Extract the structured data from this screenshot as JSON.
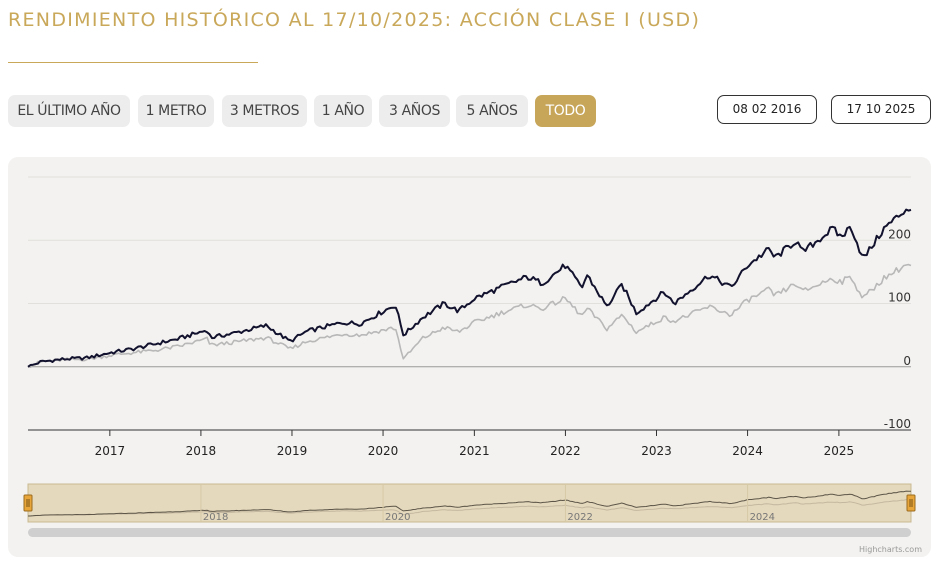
{
  "header": {
    "title": "RENDIMIENTO HISTÓRICO AL 17/10/2025: ACCIÓN CLASE I (USD)"
  },
  "range_selector": {
    "buttons": [
      {
        "label": "EL ÚLTIMO AÑO",
        "active": false
      },
      {
        "label": "1 METRO",
        "active": false
      },
      {
        "label": "3 METROS",
        "active": false
      },
      {
        "label": "1 AÑO",
        "active": false
      },
      {
        "label": "3 AÑOS",
        "active": false
      },
      {
        "label": "5 AÑOS",
        "active": false
      },
      {
        "label": "TODO",
        "active": true
      }
    ],
    "from_date": "08 02 2016",
    "to_date": "17 10 2025"
  },
  "chart_data": {
    "type": "line",
    "x_type": "date",
    "xlim": [
      "2016-02-08",
      "2025-10-17"
    ],
    "ylim": [
      -100,
      300
    ],
    "y_ticks": [
      -100,
      0,
      100,
      200
    ],
    "x_ticks": [
      "2017",
      "2018",
      "2019",
      "2020",
      "2021",
      "2022",
      "2023",
      "2024",
      "2025"
    ],
    "grid": true,
    "navigator_ticks": [
      "2018",
      "2020",
      "2022",
      "2024"
    ],
    "series": [
      {
        "color": "#12122e",
        "points": [
          [
            "2016-02-08",
            0
          ],
          [
            "2016-04-01",
            8
          ],
          [
            "2016-07-01",
            12
          ],
          [
            "2016-10-01",
            14
          ],
          [
            "2017-01-01",
            22
          ],
          [
            "2017-04-01",
            28
          ],
          [
            "2017-07-01",
            36
          ],
          [
            "2017-10-01",
            44
          ],
          [
            "2018-01-26",
            58
          ],
          [
            "2018-02-09",
            46
          ],
          [
            "2018-05-01",
            52
          ],
          [
            "2018-09-20",
            65
          ],
          [
            "2018-12-24",
            40
          ],
          [
            "2019-03-01",
            56
          ],
          [
            "2019-07-26",
            70
          ],
          [
            "2019-10-01",
            68
          ],
          [
            "2020-02-19",
            98
          ],
          [
            "2020-03-23",
            50
          ],
          [
            "2020-06-08",
            78
          ],
          [
            "2020-09-02",
            100
          ],
          [
            "2020-10-30",
            88
          ],
          [
            "2021-01-01",
            108
          ],
          [
            "2021-04-15",
            125
          ],
          [
            "2021-08-01",
            142
          ],
          [
            "2021-09-30",
            132
          ],
          [
            "2021-12-31",
            160
          ],
          [
            "2022-03-08",
            125
          ],
          [
            "2022-03-29",
            145
          ],
          [
            "2022-06-16",
            95
          ],
          [
            "2022-08-16",
            130
          ],
          [
            "2022-10-12",
            85
          ],
          [
            "2023-02-01",
            118
          ],
          [
            "2023-03-13",
            100
          ],
          [
            "2023-07-31",
            145
          ],
          [
            "2023-10-27",
            125
          ],
          [
            "2023-12-31",
            160
          ],
          [
            "2024-03-28",
            186
          ],
          [
            "2024-04-19",
            172
          ],
          [
            "2024-07-16",
            200
          ],
          [
            "2024-08-05",
            180
          ],
          [
            "2024-12-06",
            218
          ],
          [
            "2025-01-10",
            205
          ],
          [
            "2025-02-19",
            222
          ],
          [
            "2025-04-08",
            170
          ],
          [
            "2025-06-30",
            218
          ],
          [
            "2025-09-30",
            250
          ],
          [
            "2025-10-17",
            248
          ]
        ]
      },
      {
        "color": "#b8b8b8",
        "points": [
          [
            "2016-02-08",
            0
          ],
          [
            "2016-04-01",
            8
          ],
          [
            "2016-07-01",
            11
          ],
          [
            "2016-10-01",
            12
          ],
          [
            "2017-01-01",
            18
          ],
          [
            "2017-04-01",
            22
          ],
          [
            "2017-07-01",
            26
          ],
          [
            "2017-10-01",
            32
          ],
          [
            "2018-01-26",
            44
          ],
          [
            "2018-02-09",
            34
          ],
          [
            "2018-05-01",
            38
          ],
          [
            "2018-09-20",
            46
          ],
          [
            "2018-12-24",
            28
          ],
          [
            "2019-03-01",
            40
          ],
          [
            "2019-07-26",
            52
          ],
          [
            "2019-10-01",
            50
          ],
          [
            "2020-02-19",
            62
          ],
          [
            "2020-03-23",
            12
          ],
          [
            "2020-06-08",
            45
          ],
          [
            "2020-09-02",
            62
          ],
          [
            "2020-10-30",
            55
          ],
          [
            "2021-01-01",
            70
          ],
          [
            "2021-04-15",
            85
          ],
          [
            "2021-08-01",
            98
          ],
          [
            "2021-09-30",
            92
          ],
          [
            "2021-12-31",
            108
          ],
          [
            "2022-03-08",
            80
          ],
          [
            "2022-03-29",
            92
          ],
          [
            "2022-06-16",
            60
          ],
          [
            "2022-08-16",
            82
          ],
          [
            "2022-10-12",
            55
          ],
          [
            "2023-02-01",
            78
          ],
          [
            "2023-03-13",
            72
          ],
          [
            "2023-07-31",
            95
          ],
          [
            "2023-10-27",
            82
          ],
          [
            "2023-12-31",
            105
          ],
          [
            "2024-03-28",
            122
          ],
          [
            "2024-04-19",
            112
          ],
          [
            "2024-07-16",
            132
          ],
          [
            "2024-08-05",
            118
          ],
          [
            "2024-12-06",
            140
          ],
          [
            "2025-01-10",
            134
          ],
          [
            "2025-02-19",
            142
          ],
          [
            "2025-04-08",
            108
          ],
          [
            "2025-06-30",
            140
          ],
          [
            "2025-09-30",
            162
          ],
          [
            "2025-10-17",
            160
          ]
        ]
      }
    ]
  },
  "credit": "Highcharts.com"
}
